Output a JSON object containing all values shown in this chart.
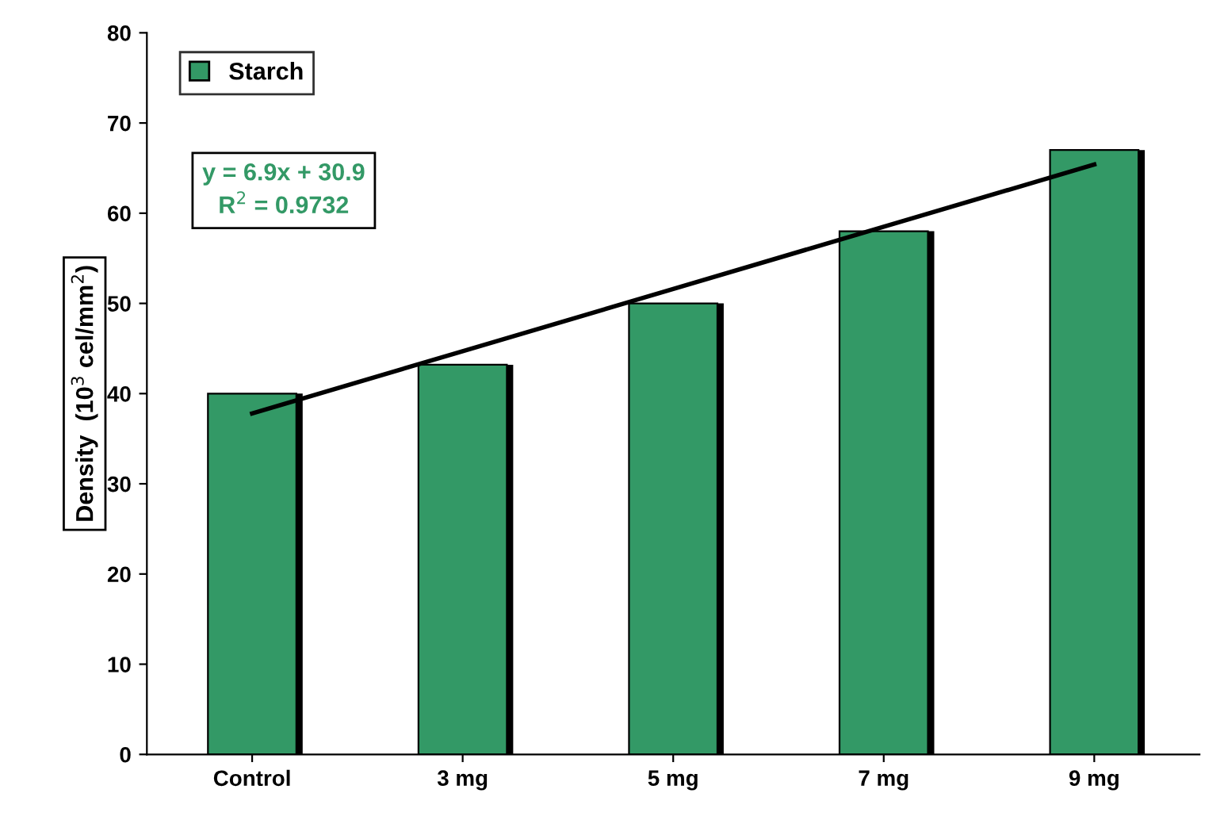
{
  "chart_data": {
    "type": "bar",
    "ylabel": "Density  (10$^{3}$ cel/mm$^{2}$)",
    "categories": [
      "Control",
      "3 mg",
      "5 mg",
      "7 mg",
      "9 mg"
    ],
    "series": [
      {
        "name": "Starch",
        "color": "#339966",
        "values": [
          40,
          43.2,
          50,
          58,
          67
        ]
      },
      {
        "type": "line",
        "color": "#000000",
        "values": [
          37.8,
          44.7,
          51.6,
          58.5,
          65.4
        ]
      }
    ],
    "annotations": [
      "y = 6.9x + 30.9\nR$^{2}$ = 0.9732"
    ],
    "ylim": [
      0,
      80
    ],
    "yticks": [
      0,
      10,
      20,
      30,
      40,
      50,
      60,
      70,
      80
    ],
    "grid": false,
    "legend": "top left"
  }
}
